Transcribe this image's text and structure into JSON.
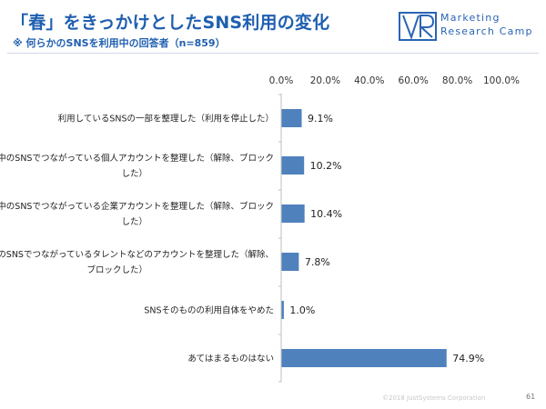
{
  "slide": {
    "title": "「春」をきっかけとしたSNS利用の変化",
    "subtitle": "※ 何らかのSNSを利用中の回答者（n=859）",
    "logo_line1": "Marketing",
    "logo_line2": "Research Camp",
    "footer": "©2018 JustSystems Corporation",
    "page_number": "61"
  },
  "colors": {
    "bar": "#4f81bd",
    "accent": "#1f5fb0"
  },
  "chart_data": {
    "type": "bar",
    "orientation": "horizontal",
    "categories": [
      [
        "利用しているSNSの一部を整理した（利用を停止した）"
      ],
      [
        "利用中のSNSでつながっている個人アカウントを整理した（解除、ブロック",
        "した）"
      ],
      [
        "利用中のSNSでつながっている企業アカウントを整理した（解除、ブロック",
        "した）"
      ],
      [
        "利用中のSNSでつながっているタレントなどのアカウントを整理した（解除、",
        "ブロックした）"
      ],
      [
        "SNSそのものの利用自体をやめた"
      ],
      [
        "あてはまるものはない"
      ]
    ],
    "values": [
      9.1,
      10.2,
      10.4,
      7.8,
      1.0,
      74.9
    ],
    "value_labels": [
      "9.1%",
      "10.2%",
      "10.4%",
      "7.8%",
      "1.0%",
      "74.9%"
    ],
    "tick_labels": [
      "0.0%",
      "20.0%",
      "40.0%",
      "60.0%",
      "80.0%",
      "100.0%"
    ],
    "ticks": [
      0,
      20,
      40,
      60,
      80,
      100
    ],
    "xlim": [
      0,
      100
    ],
    "axis_position": "top",
    "grid": false,
    "legend": "none"
  }
}
